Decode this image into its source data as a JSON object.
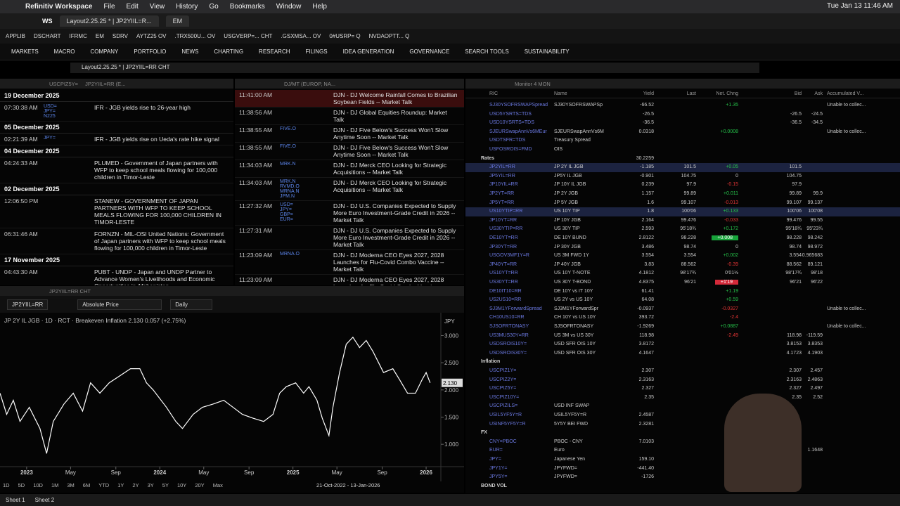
{
  "menubar": {
    "app": "Refinitiv Workspace",
    "items": [
      "File",
      "Edit",
      "View",
      "History",
      "Go",
      "Bookmarks",
      "Window",
      "Help"
    ],
    "clock": "Tue Jan 13  11:46 AM"
  },
  "tabs": {
    "brand": "WS",
    "items": [
      "Layout2.25.25 * | JP2YIIL=R...",
      "EM"
    ]
  },
  "bookmarks": [
    "APPLIB",
    "DSCHART",
    "IFRMC",
    "EM",
    "SDRV",
    "AYTZ25 OV",
    ".TRX500U... OV",
    "USGVERP=... CHT",
    ".GSXMSA... OV",
    "0#USRP= Q",
    "NVDAOPTT... Q"
  ],
  "nav": [
    "MARKETS",
    "MACRO",
    "COMPANY",
    "PORTFOLIO",
    "NEWS",
    "CHARTING",
    "RESEARCH",
    "FILINGS",
    "IDEA GENERATION",
    "GOVERNANCE",
    "SEARCH TOOLS",
    "SUSTAINABILITY"
  ],
  "address": "Layout2.25.25 * | JP2YIIL=RR CHT",
  "news_left": {
    "tabs": [
      "USCPIZ5Y=",
      "JP2YIIL=RR (E..."
    ],
    "groups": [
      {
        "date": "19 December 2025",
        "items": [
          {
            "time": "07:30:38 AM",
            "ric": [
              "USD=",
              "JPY=",
              "N225"
            ],
            "headline": "IFR - JGB yields rise to 26-year high"
          }
        ]
      },
      {
        "date": "05 December 2025",
        "items": [
          {
            "time": "02:21:39 AM",
            "ric": [
              "JPY="
            ],
            "headline": "IFR - JGB yields rise on Ueda's rate hike signal"
          }
        ]
      },
      {
        "date": "04 December 2025",
        "items": [
          {
            "time": "04:24:33 AM",
            "headline": "PLUMED - Government of Japan partners with WFP to keep school meals flowing for 100,000 children in Timor-Leste"
          }
        ]
      },
      {
        "date": "02 December 2025",
        "items": [
          {
            "time": "12:06:50 PM",
            "headline": "STANEW - GOVERNMENT OF JAPAN PARTNERS WITH WFP TO KEEP SCHOOL MEALS FLOWING FOR 100,000 CHILDREN IN TIMOR-LESTE"
          },
          {
            "time": "06:31:46 AM",
            "headline": "FORNZN - MIL-OSI United Nations: Government of Japan partners with WFP to keep school meals flowing for 100,000 children in Timor-Leste"
          }
        ]
      },
      {
        "date": "17 November 2025",
        "items": [
          {
            "time": "04:43:30 AM",
            "headline": "PUBT - UNDP - Japan and UNDP Partner to Advance Women's Livelihoods and Economic Opportunities in Afghanistan"
          }
        ]
      }
    ]
  },
  "news_mid": {
    "tab": "DJ/MT (EUROP, NA...",
    "items": [
      {
        "time": "11:41:00 AM",
        "headline": "DJN - DJ Welcome Rainfall Comes to Brazilian Soybean Fields -- Market Talk"
      },
      {
        "time": "11:38:56 AM",
        "headline": "DJN - DJ Global Equities Roundup: Market Talk"
      },
      {
        "time": "11:38:55 AM",
        "ric": [
          "FIVE.O"
        ],
        "headline": "DJN - DJ Five Below's Success Won't Slow Anytime Soon -- Market Talk"
      },
      {
        "time": "11:38:55 AM",
        "ric": [
          "FIVE.O"
        ],
        "headline": "DJN - DJ Five Below's Success Won't Slow Anytime Soon -- Market Talk"
      },
      {
        "time": "11:34:03 AM",
        "ric": [
          "MRK.N"
        ],
        "headline": "DJN - DJ Merck CEO Looking for Strategic Acquisitions -- Market Talk"
      },
      {
        "time": "11:34:03 AM",
        "ric": [
          "MRK.N",
          "RVMD.O",
          "MRNA.N",
          "JPM.N"
        ],
        "headline": "DJN - DJ Merck CEO Looking for Strategic Acquisitions -- Market Talk"
      },
      {
        "time": "11:27:32 AM",
        "ric": [
          "USD=",
          "JPY=",
          "GBP=",
          "EUR="
        ],
        "headline": "DJN - DJ U.S. Companies Expected to Supply More Euro Investment-Grade Credit in 2026 -- Market Talk"
      },
      {
        "time": "11:27:31 AM",
        "headline": "DJN - DJ U.S. Companies Expected to Supply More Euro Investment-Grade Credit in 2026 -- Market Talk"
      },
      {
        "time": "11:23:09 AM",
        "ric": [
          "MRNA.O"
        ],
        "headline": "DJN - DJ Moderna CEO Eyes 2027, 2028 Launches for Flu-Covid Combo Vaccine -- Market Talk"
      },
      {
        "time": "11:23:09 AM",
        "headline": "DJN - DJ Moderna CEO Eyes 2027, 2028 Launches for Flu-Covid Combo Vaccine -- Market Talk"
      }
    ]
  },
  "chart": {
    "type": "line",
    "tab": "JP2YIIL=RR CHT",
    "ric": "JP2YIIL=RR",
    "price_type": "Absolute Price",
    "interval": "Daily",
    "legend": "JP 2Y IL JGB · 1D · RCT · Breakeven Inflation  2.130  0.057 (+2.75%)",
    "currency": "JPY",
    "color": "#ffffff",
    "x": [
      2022.8,
      2022.85,
      2022.9,
      2022.95,
      2023.02,
      2023.1,
      2023.15,
      2023.2,
      2023.28,
      2023.35,
      2023.42,
      2023.48,
      2023.55,
      2023.62,
      2023.7,
      2023.78,
      2023.85,
      2023.9,
      2023.95,
      2024.05,
      2024.12,
      2024.17,
      2024.25,
      2024.32,
      2024.4,
      2024.48,
      2024.55,
      2024.62,
      2024.7,
      2024.78,
      2024.85,
      2024.9,
      2024.95,
      2025.02,
      2025.08,
      2025.12,
      2025.18,
      2025.22,
      2025.27,
      2025.3,
      2025.35,
      2025.4,
      2025.45,
      2025.5,
      2025.55,
      2025.6,
      2025.68,
      2025.75,
      2025.8,
      2025.86,
      2025.92,
      2025.97,
      2026.0,
      2026.03
    ],
    "values": [
      1.94,
      1.55,
      1.81,
      1.42,
      1.68,
      1.29,
      0.83,
      1.42,
      1.74,
      1.94,
      1.61,
      2.13,
      1.94,
      2.13,
      2.26,
      2.39,
      2.39,
      2.13,
      2.0,
      1.68,
      1.42,
      1.29,
      1.55,
      1.68,
      1.74,
      1.81,
      1.68,
      1.55,
      1.48,
      1.42,
      1.55,
      1.94,
      2.06,
      2.13,
      1.94,
      2.06,
      1.81,
      1.48,
      1.16,
      1.68,
      2.32,
      2.84,
      2.97,
      2.78,
      2.91,
      2.71,
      2.32,
      2.39,
      2.19,
      1.94,
      1.94,
      2.19,
      2.32,
      2.13
    ],
    "last": {
      "value": 2.13,
      "label": "2.130"
    },
    "xlim": [
      2022.8,
      2026.1
    ],
    "ylim": [
      0.64,
      3.2
    ],
    "yticks": [
      {
        "value": 1,
        "label": "1.000"
      },
      {
        "value": 1.5,
        "label": "1.500"
      },
      {
        "value": 2,
        "label": "2.000"
      },
      {
        "value": 2.5,
        "label": "2.500"
      },
      {
        "value": 3,
        "label": "3.000"
      }
    ],
    "xticks": [
      {
        "value": 2023,
        "label": "2023"
      },
      {
        "value": 2023.33,
        "label": "May"
      },
      {
        "value": 2023.67,
        "label": "Sep"
      },
      {
        "value": 2024,
        "label": "2024"
      },
      {
        "value": 2024.33,
        "label": "May"
      },
      {
        "value": 2024.67,
        "label": "Sep"
      },
      {
        "value": 2025,
        "label": "2025"
      },
      {
        "value": 2025.33,
        "label": "May"
      },
      {
        "value": 2025.67,
        "label": "Sep"
      },
      {
        "value": 2026,
        "label": "2026"
      }
    ],
    "ranges": [
      "1D",
      "5D",
      "10D",
      "1M",
      "3M",
      "6M",
      "YTD",
      "1Y",
      "2Y",
      "3Y",
      "5Y",
      "10Y",
      "20Y",
      "Max"
    ],
    "date_range": "21-Oct-2022  -  13-Jan-2026"
  },
  "monitor": {
    "tab": "Monitor 4 MON",
    "columns": [
      "RIC",
      "Name",
      "Yield",
      "Last",
      "Net. Chng",
      "Bid",
      "Ask",
      "Accumulated V..."
    ],
    "rows": [
      {
        "ric": "SJ30YSOFRSWAPSpread",
        "name": "SJ30YSOFRSWAPSp",
        "yield": "-66.52",
        "chg": "+1.35",
        "acc": "Unable to collec..."
      },
      {
        "ric": "USD5YSRTS=TDS",
        "yield": "-26.5",
        "bid": "-26.5",
        "ask": "-24.5"
      },
      {
        "ric": "USD10YSRTS=TDS",
        "yield": "-36.5",
        "bid": "-36.5",
        "ask": "-34.5"
      },
      {
        "ric": "SJEURSwapAnnVs6MEur",
        "name": "SJEURSwapAnnVs6M",
        "yield": "0.0318",
        "chg": "+0.0008",
        "acc": "Unable to collec..."
      },
      {
        "ric": "USDTSFR=TDS",
        "name": "Treasury Spread"
      },
      {
        "ric": "USFOSROIS=FMD",
        "name": "OIS"
      },
      {
        "group": "Rates",
        "yield": "30.2259"
      },
      {
        "ric": "JP2YIL=RR",
        "name": "JP 2Y IL JGB",
        "yield": "-1.185",
        "last": "101.5",
        "chg": "+0.05",
        "bid": "101.5",
        "selected": true
      },
      {
        "ric": "JP5YIL=RR",
        "name": "JP5Y IL JGB",
        "yield": "-0.901",
        "last": "104.75",
        "chg": "0",
        "bid": "104.75"
      },
      {
        "ric": "JP10YIL=RR",
        "name": "JP 10Y IL JGB",
        "yield": "0.239",
        "last": "97.9",
        "chg": "-0.15",
        "bid": "97.9"
      },
      {
        "ric": "JP2YT=RR",
        "name": "JP 2Y JGB",
        "yield": "1.157",
        "last": "99.89",
        "chg": "+0.011",
        "bid": "99.89",
        "ask": "99.9"
      },
      {
        "ric": "JP5YT=RR",
        "name": "JP 5Y JGB",
        "yield": "1.6",
        "last": "99.107",
        "chg": "-0.013",
        "bid": "99.107",
        "ask": "99.137"
      },
      {
        "ric": "US10YTIP=RR",
        "name": "US 10Y TIP",
        "yield": "1.8",
        "last": "100'06",
        "chg": "+0.133",
        "bid": "100'06",
        "ask": "100'08",
        "selected": true
      },
      {
        "ric": "JP10YT=RR",
        "name": "JP 10Y JGB",
        "yield": "2.164",
        "last": "99.476",
        "chg": "-0.033",
        "bid": "99.476",
        "ask": "99.55"
      },
      {
        "ric": "US30YTIP=RR",
        "name": "US 30Y TIP",
        "yield": "2.593",
        "last": "95'18¾",
        "chg": "+0.172",
        "bid": "95'18¾",
        "ask": "95'23¾"
      },
      {
        "ric": "DE10YT=RR",
        "name": "DE 10Y BUND",
        "yield": "2.8122",
        "last": "98.228",
        "chg": "+0.008",
        "bid": "98.228",
        "ask": "98.242",
        "flash": "up"
      },
      {
        "ric": "JP30YT=RR",
        "name": "JP 30Y JGB",
        "yield": "3.486",
        "last": "98.74",
        "chg": "0",
        "bid": "98.74",
        "ask": "98.972"
      },
      {
        "ric": "USGOV3MF1Y=R",
        "name": "US 3M FWD 1Y",
        "yield": "3.554",
        "last": "3.554",
        "chg": "+0.002",
        "bid": "3.554",
        "ask": "0.965683"
      },
      {
        "ric": "JP40YT=RR",
        "name": "JP 40Y JGB",
        "yield": "3.83",
        "last": "88.562",
        "chg": "-0.39",
        "bid": "88.562",
        "ask": "89.121"
      },
      {
        "ric": "US10YT=RR",
        "name": "US 10Y T-NOTE",
        "yield": "4.1812",
        "last": "98'17¾",
        "chg": "0'01½",
        "bid": "98'17¾",
        "ask": "98'18"
      },
      {
        "ric": "US30YT=RR",
        "name": "US 30Y T-BOND",
        "yield": "4.8375",
        "last": "96'21",
        "chg": "+1'19",
        "bid": "96'21",
        "ask": "96'22",
        "flash": "down"
      },
      {
        "ric": "DE10IT10=RR",
        "name": "DE 10Y vs IT 10Y",
        "yield": "61.41",
        "chg": "+1.19"
      },
      {
        "ric": "US2US10=RR",
        "name": "US 2Y vs US 10Y",
        "yield": "64.08",
        "chg": "+0.59"
      },
      {
        "ric": "SJ3M1YForwardSpread",
        "name": "SJ3M1YForwardSpr",
        "yield": "-0.0937",
        "chg": "-0.0327",
        "acc": "Unable to collec..."
      },
      {
        "ric": "CH10US10=RR",
        "name": "CH 10Y vs US 10Y",
        "yield": "393.72",
        "chg": "-2.4"
      },
      {
        "ric": "SJSOFRTONASY",
        "name": "SJSOFRTONASY",
        "yield": "-1.9269",
        "chg": "+0.0887",
        "acc": "Unable to collec..."
      },
      {
        "ric": "US3MUS30Y=RR",
        "name": "US 3M vs US 30Y",
        "yield": "118.98",
        "chg": "-2.49",
        "bid": "118.98",
        "ask": "-119.59"
      },
      {
        "ric": "USDSROIS10Y=",
        "name": "USD SFR OIS 10Y",
        "yield": "3.8172",
        "bid": "3.8153",
        "ask": "3.8353"
      },
      {
        "ric": "USDSROIS30Y=",
        "name": "USD SFR OIS 30Y",
        "yield": "4.1647",
        "bid": "4.1723",
        "ask": "4.1903"
      },
      {
        "group": "Inflation"
      },
      {
        "ric": "USCPIZ1Y=",
        "yield": "2.307",
        "bid": "2.307",
        "ask": "2.457"
      },
      {
        "ric": "USCPIZ2Y=",
        "yield": "2.3163",
        "bid": "2.3163",
        "ask": "2.4863"
      },
      {
        "ric": "USCPIZ5Y=",
        "yield": "2.327",
        "bid": "2.327",
        "ask": "2.497"
      },
      {
        "ric": "USCPIZ10Y=",
        "yield": "2.35",
        "bid": "2.35",
        "ask": "2.52"
      },
      {
        "ric": "USCPIZILS=",
        "name": "USD INF SWAP"
      },
      {
        "ric": "USIL5YF5Y=R",
        "name": "USIL5YF5Y=R",
        "yield": "2.4587"
      },
      {
        "ric": "USINF5YF5Y=R",
        "name": "5Y5Y BEI FWD",
        "yield": "2.3281"
      },
      {
        "group": "FX"
      },
      {
        "ric": "CNY=PBOC",
        "name": "PBOC - CNY",
        "yield": "7.0103"
      },
      {
        "ric": "EUR=",
        "name": "Euro",
        "ask": "1.1648"
      },
      {
        "ric": "JPY=",
        "name": "Japanese Yen",
        "yield": "159.10"
      },
      {
        "ric": "JPY1Y=",
        "name": "JPYFWD=",
        "yield": "-441.40"
      },
      {
        "ric": "JPY5Y=",
        "name": "JPYFWD=",
        "yield": "-1726"
      },
      {
        "group": "BOND VOL"
      }
    ]
  },
  "sheets": [
    "Sheet 1",
    "Sheet 2"
  ]
}
